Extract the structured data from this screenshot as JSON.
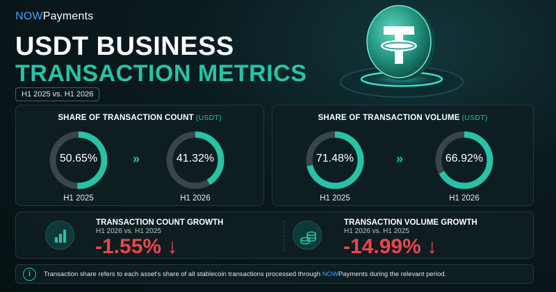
{
  "brand": {
    "now": "NOW",
    "payments": "Payments"
  },
  "title": {
    "line1": "USDT BUSINESS",
    "line2": "TRANSACTION METRICS"
  },
  "period": "H1 2025 vs. H1 2026",
  "colors": {
    "accent": "#27c3a6",
    "track": "#3a4548",
    "negative": "#f0444b",
    "brand_blue": "#3fa3ff"
  },
  "count_panel": {
    "title": "SHARE OF TRANSACTION COUNT",
    "unit": "(USDT)",
    "items": [
      {
        "label": "50.65%",
        "value": 50.65,
        "year": "H1 2025"
      },
      {
        "label": "41.32%",
        "value": 41.32,
        "year": "H1 2026"
      }
    ]
  },
  "volume_panel": {
    "title": "SHARE OF TRANSACTION VOLUME",
    "unit": "(USDT)",
    "items": [
      {
        "label": "71.48%",
        "value": 71.48,
        "year": "H1 2025"
      },
      {
        "label": "66.92%",
        "value": 66.92,
        "year": "H1 2026"
      }
    ]
  },
  "count_growth": {
    "title": "TRANSACTION COUNT GROWTH",
    "sub": "H1 2026 vs. H1 2025",
    "value": "-1.55% ↓",
    "icon": "bar-chart-icon"
  },
  "volume_growth": {
    "title": "TRANSACTION VOLUME GROWTH",
    "sub": "H1 2026 vs. H1 2025",
    "value": "-14.99% ↓",
    "icon": "coin-stack-icon"
  },
  "note": {
    "before": "Transaction share refers to each asset's share of all stablecoin transactions processed through ",
    "brand_now": "NOW",
    "brand_pay": "Payments",
    "after": " during the relevant period.",
    "icon": "info-icon"
  }
}
